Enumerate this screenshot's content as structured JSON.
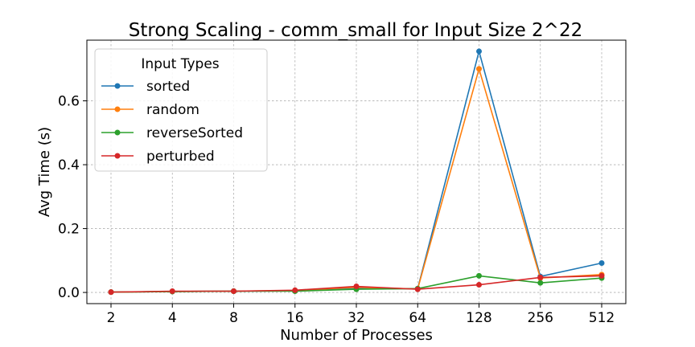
{
  "chart_data": {
    "type": "line",
    "title": "Strong Scaling - comm_small for Input Size 2^22",
    "xlabel": "Number of Processes",
    "ylabel": "Avg Time (s)",
    "categories": [
      "2",
      "4",
      "8",
      "16",
      "32",
      "64",
      "128",
      "256",
      "512"
    ],
    "y_ticks": [
      "0.0",
      "0.2",
      "0.4",
      "0.6"
    ],
    "ylim": [
      -0.035,
      0.79
    ],
    "grid": true,
    "legend": {
      "title": "Input Types",
      "placement": "upper-left"
    },
    "series": [
      {
        "name": "sorted",
        "color": "#1f77b4",
        "values": [
          0.001,
          0.003,
          0.004,
          0.005,
          0.012,
          0.012,
          0.755,
          0.05,
          0.092
        ]
      },
      {
        "name": "random",
        "color": "#ff7f0e",
        "values": [
          0.001,
          0.003,
          0.004,
          0.006,
          0.016,
          0.011,
          0.7,
          0.045,
          0.056
        ]
      },
      {
        "name": "reverseSorted",
        "color": "#2ca02c",
        "values": [
          0.001,
          0.003,
          0.004,
          0.004,
          0.01,
          0.012,
          0.052,
          0.03,
          0.045
        ]
      },
      {
        "name": "perturbed",
        "color": "#d62728",
        "values": [
          0.001,
          0.004,
          0.004,
          0.007,
          0.019,
          0.01,
          0.024,
          0.047,
          0.052
        ]
      }
    ]
  }
}
